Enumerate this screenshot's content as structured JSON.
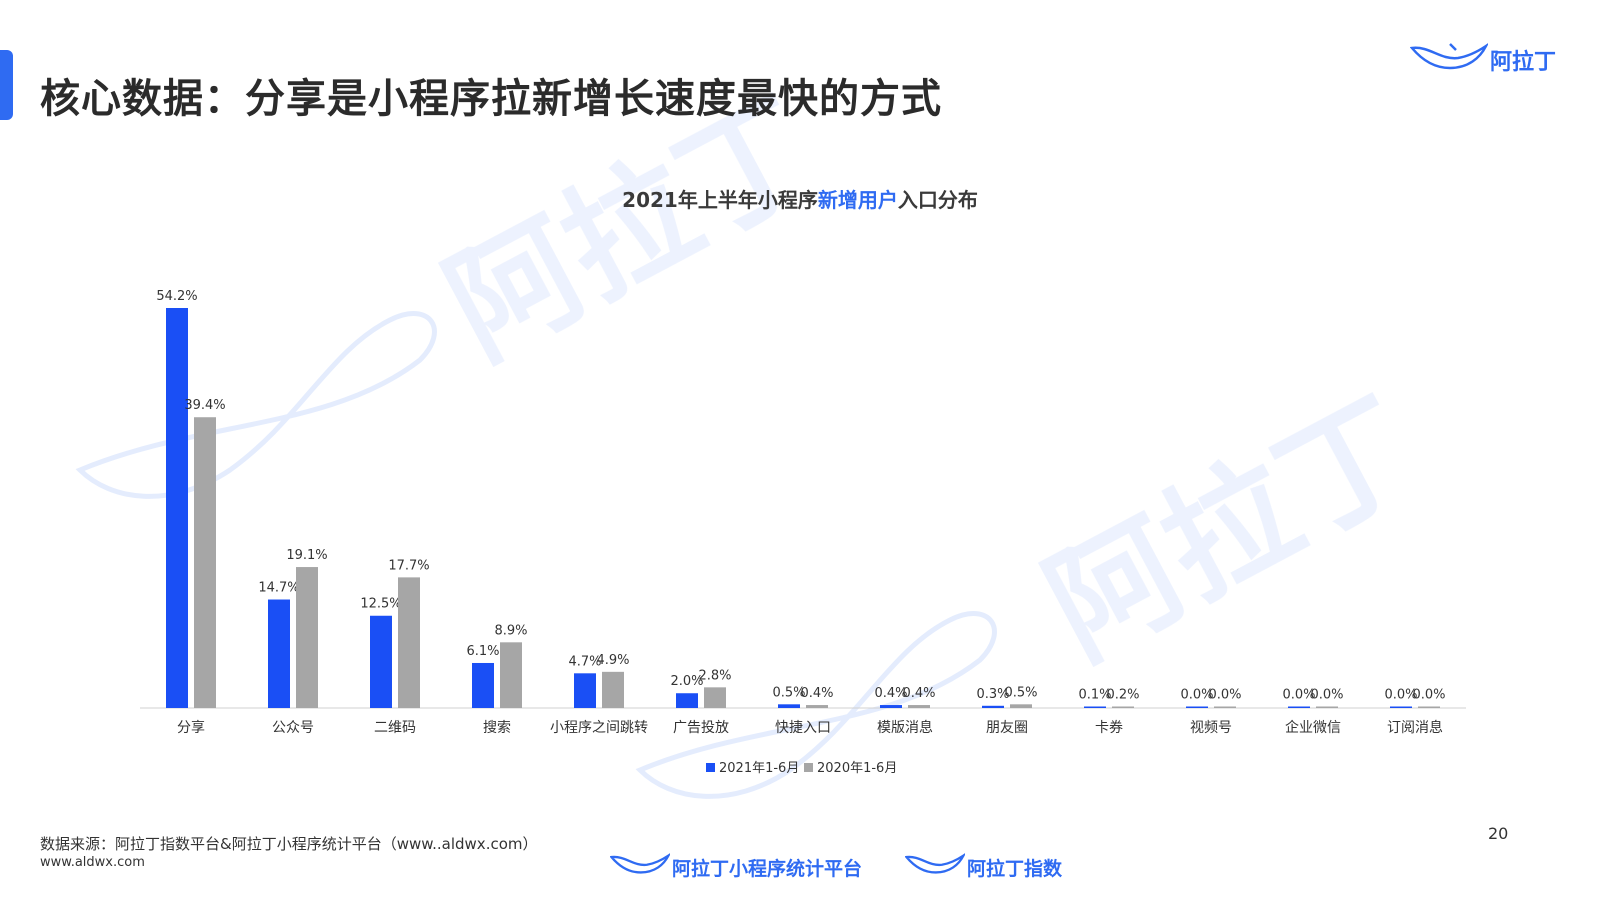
{
  "header": {
    "title": "核心数据：分享是小程序拉新增长速度最快的方式",
    "brand": "阿拉丁"
  },
  "chart_title": {
    "prefix": "2021年上半年小程序",
    "highlight": "新增用户",
    "suffix": "入口分布"
  },
  "watermark_text": "阿拉丁",
  "colors": {
    "accent": "#2f6bf2",
    "series_2021": "#1a4ff5",
    "series_2020": "#a6a6a6"
  },
  "chart_data": {
    "type": "bar",
    "title": "2021年上半年小程序新增用户入口分布",
    "categories": [
      "分享",
      "公众号",
      "二维码",
      "搜索",
      "小程序之间跳转",
      "广告投放",
      "快捷入口",
      "模版消息",
      "朋友圈",
      "卡券",
      "视频号",
      "企业微信",
      "订阅消息"
    ],
    "series": [
      {
        "name": "2021年1-6月",
        "values": [
          54.2,
          14.7,
          12.5,
          6.1,
          4.7,
          2.0,
          0.5,
          0.4,
          0.3,
          0.1,
          0.0,
          0.0,
          0.0
        ],
        "labels": [
          "54.2%",
          "14.7%",
          "12.5%",
          "6.1%",
          "4.7%",
          "2.0%",
          "0.5%",
          "0.4%",
          "0.3%",
          "0.1%",
          "0.0%",
          "0.0%",
          "0.0%"
        ]
      },
      {
        "name": "2020年1-6月",
        "values": [
          39.4,
          19.1,
          17.7,
          8.9,
          4.9,
          2.8,
          0.4,
          0.4,
          0.5,
          0.2,
          0.0,
          0.0,
          0.0
        ],
        "labels": [
          "39.4%",
          "19.1%",
          "17.7%",
          "8.9%",
          "4.9%",
          "2.8%",
          "0.4%",
          "0.4%",
          "0.5%",
          "0.2%",
          "0.0%",
          "0.0%",
          "0.0%"
        ]
      }
    ],
    "ylim": [
      0,
      54.2
    ],
    "legend_position": "bottom",
    "grid": false
  },
  "footer": {
    "source": "数据来源：阿拉丁指数平台&阿拉丁小程序统计平台（www..aldwx.com）",
    "url": "www.aldwx.com",
    "page_number": "20",
    "logo1": "阿拉丁小程序统计平台",
    "logo2": "阿拉丁指数"
  }
}
